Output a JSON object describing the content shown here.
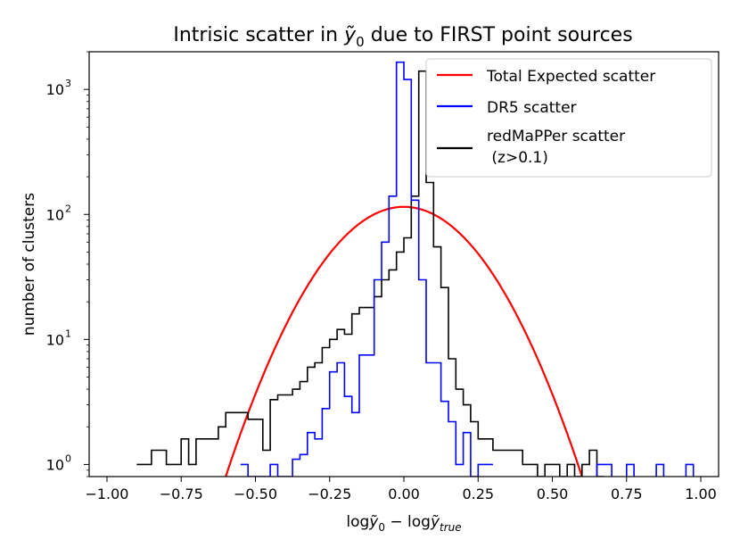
{
  "chart_data": {
    "type": "histogram-step",
    "title": "Intrisic scatter in ỹ₀ due to FIRST point sources",
    "title_parts": [
      "Intrisic scatter in ",
      "ỹ",
      "0",
      " due to FIRST point sources"
    ],
    "xlabel": "logỹ₀ − logỹ_true",
    "xlabel_parts": [
      "log",
      "ỹ",
      "0",
      " − log",
      "ỹ",
      "true"
    ],
    "ylabel": "number of clusters",
    "yscale": "log",
    "xlim": [
      -1.06,
      1.06
    ],
    "ylim": [
      0.8,
      2000
    ],
    "x_ticks": [
      -1.0,
      -0.75,
      -0.5,
      -0.25,
      0.0,
      0.25,
      0.5,
      0.75,
      1.0
    ],
    "x_tick_labels": [
      "−1.00",
      "−0.75",
      "−0.50",
      "−0.25",
      "0.00",
      "0.25",
      "0.50",
      "0.75",
      "1.00"
    ],
    "y_ticks": [
      1,
      10,
      100,
      1000
    ],
    "y_tick_bases": [
      "10",
      "10",
      "10",
      "10"
    ],
    "y_tick_exponents": [
      "0",
      "1",
      "2",
      "3"
    ],
    "legend_position": "top-right",
    "legend": [
      {
        "label": "Total Expected scatter",
        "color": "#ff0000"
      },
      {
        "label": "DR5 scatter",
        "color": "#0000ff"
      },
      {
        "label": "redMaPPer scatter",
        "label_line2": " (z>0.1)",
        "color": "#000000"
      }
    ],
    "bin_width": 0.025,
    "series": [
      {
        "name": "redMaPPer scatter (z>0.1)",
        "color": "#000000",
        "edges_start": -0.9,
        "counts": [
          1,
          1,
          1.3,
          1.3,
          1,
          1,
          1.6,
          1,
          1.6,
          1.6,
          1.6,
          2,
          2.6,
          2.6,
          2.6,
          2.3,
          2.3,
          1.3,
          3.3,
          3.6,
          3.6,
          4,
          4.6,
          6,
          6.5,
          8.6,
          10,
          12,
          11,
          16,
          18,
          18,
          22,
          30,
          36,
          50,
          65,
          140,
          1400,
          180,
          55,
          26,
          7,
          4,
          3,
          2.2,
          1.6,
          1.6,
          1.3,
          1.3,
          1.3,
          1.3,
          1,
          1,
          0.8,
          1,
          1,
          0.8,
          1,
          0.8,
          1,
          1.3,
          0.8
        ]
      },
      {
        "name": "DR5 scatter",
        "color": "#0000ff",
        "edges_start": -0.55,
        "counts": [
          1,
          0.8,
          0.8,
          0.8,
          1,
          0.8,
          0.8,
          1.1,
          1.2,
          1.8,
          1.6,
          2.8,
          5.5,
          6.5,
          3.5,
          2.6,
          7.5,
          7.5,
          30,
          60,
          140,
          1650,
          1200,
          130,
          30,
          6.5,
          6.5,
          3.2,
          2.2,
          1,
          1.8,
          0.8,
          1,
          1
        ]
      },
      {
        "name": "DR5 scatter outliers",
        "color": "#0000ff",
        "bins": [
          [
            0.65,
            0.7
          ],
          [
            0.75,
            0.775
          ],
          [
            0.85,
            0.875
          ],
          [
            0.95,
            0.975
          ]
        ],
        "count": 1
      },
      {
        "name": "Total Expected scatter",
        "color": "#ff0000",
        "type": "curve",
        "peak": 115,
        "zero_crossings": [
          -0.6,
          0.6
        ]
      }
    ]
  }
}
